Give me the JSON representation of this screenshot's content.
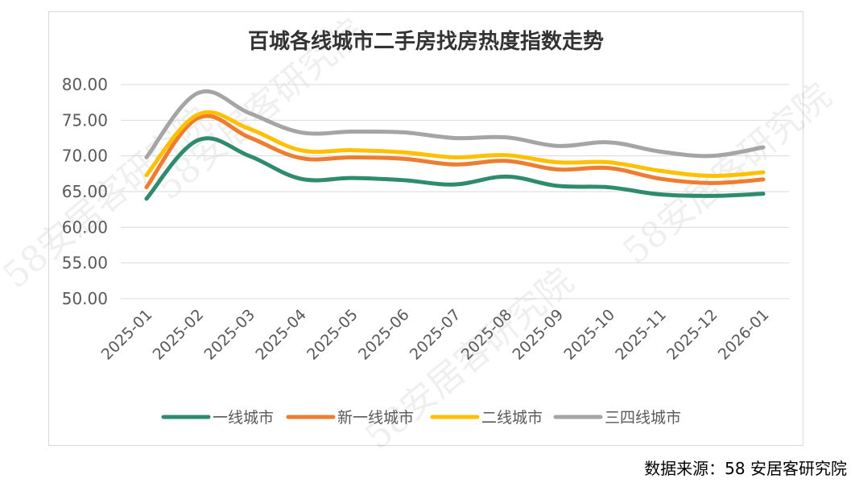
{
  "chart_data": {
    "type": "line",
    "title": "百城各线城市二手房找房热度指数走势",
    "x": [
      "2025-01",
      "2025-02",
      "2025-03",
      "2025-04",
      "2025-05",
      "2025-06",
      "2025-07",
      "2025-08",
      "2025-09",
      "2025-10",
      "2025-11",
      "2025-12",
      "2026-01"
    ],
    "ylim": [
      50,
      80
    ],
    "yticks": [
      "50.00",
      "55.00",
      "60.00",
      "65.00",
      "70.00",
      "75.00",
      "80.00"
    ],
    "grid": true,
    "legend_position": "bottom",
    "series": [
      {
        "name": "一线城市",
        "color": "#2e8b6e",
        "values": [
          64.0,
          72.2,
          70.0,
          66.8,
          66.9,
          66.6,
          66.0,
          67.1,
          65.8,
          65.6,
          64.6,
          64.4,
          64.7
        ]
      },
      {
        "name": "新一线城市",
        "color": "#ed7d31",
        "values": [
          65.6,
          75.3,
          72.6,
          69.7,
          69.8,
          69.6,
          68.8,
          69.3,
          68.1,
          68.3,
          66.8,
          66.2,
          66.7
        ]
      },
      {
        "name": "二线城市",
        "color": "#ffc000",
        "values": [
          67.3,
          75.8,
          73.8,
          70.8,
          70.8,
          70.5,
          69.8,
          70.1,
          69.1,
          69.1,
          67.9,
          67.2,
          67.7
        ]
      },
      {
        "name": "三四线城市",
        "color": "#a5a5a5",
        "values": [
          69.8,
          78.8,
          76.0,
          73.3,
          73.4,
          73.3,
          72.5,
          72.6,
          71.4,
          71.9,
          70.6,
          70.0,
          71.2
        ]
      }
    ]
  },
  "source": "数据来源：58 安居客研究院",
  "watermark": "58安居客研究院"
}
